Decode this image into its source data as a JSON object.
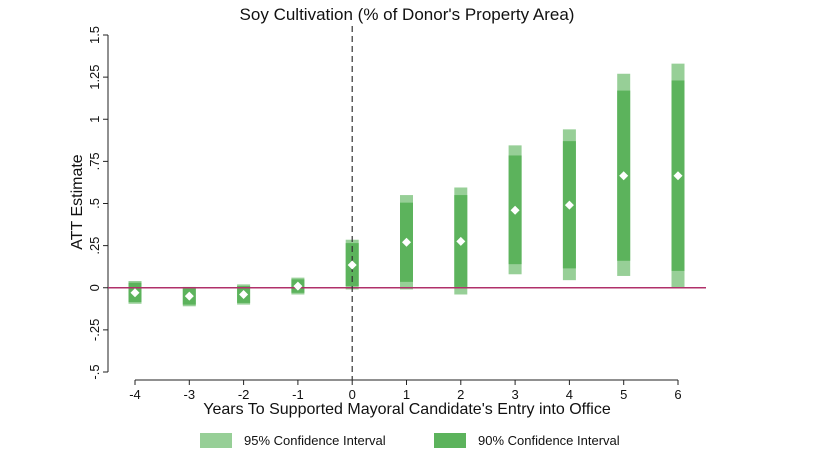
{
  "chart_data": {
    "type": "interval",
    "title": "Soy Cultivation (% of Donor's Property Area)",
    "xlabel": "Years To Supported Mayoral Candidate's Entry into Office",
    "ylabel": "ATT Estimate",
    "xlim": [
      -4,
      6
    ],
    "ylim": [
      -0.5,
      1.5
    ],
    "x_ticks": [
      "-4",
      "-3",
      "-2",
      "-1",
      "0",
      "1",
      "2",
      "3",
      "4",
      "5",
      "6"
    ],
    "y_ticks": [
      {
        "value": -0.5,
        "label": "-.5"
      },
      {
        "value": -0.25,
        "label": "-.25"
      },
      {
        "value": 0,
        "label": "0"
      },
      {
        "value": 0.25,
        "label": ".25"
      },
      {
        "value": 0.5,
        "label": ".5"
      },
      {
        "value": 0.75,
        "label": ".75"
      },
      {
        "value": 1,
        "label": "1"
      },
      {
        "value": 1.25,
        "label": "1.25"
      },
      {
        "value": 1.5,
        "label": "1.5"
      }
    ],
    "points": [
      {
        "x": -4,
        "estimate": -0.03,
        "ci95": [
          -0.095,
          0.04
        ],
        "ci90": [
          -0.085,
          0.03
        ]
      },
      {
        "x": -3,
        "estimate": -0.05,
        "ci95": [
          -0.11,
          0.005
        ],
        "ci90": [
          -0.1,
          -0.005
        ]
      },
      {
        "x": -2,
        "estimate": -0.04,
        "ci95": [
          -0.1,
          0.02
        ],
        "ci90": [
          -0.09,
          0.01
        ]
      },
      {
        "x": -1,
        "estimate": 0.01,
        "ci95": [
          -0.04,
          0.06
        ],
        "ci90": [
          -0.03,
          0.05
        ]
      },
      {
        "x": 0,
        "estimate": 0.135,
        "ci95": [
          -0.01,
          0.285
        ],
        "ci90": [
          0.01,
          0.265
        ]
      },
      {
        "x": 1,
        "estimate": 0.27,
        "ci95": [
          -0.01,
          0.55
        ],
        "ci90": [
          0.035,
          0.505
        ]
      },
      {
        "x": 2,
        "estimate": 0.275,
        "ci95": [
          -0.04,
          0.595
        ],
        "ci90": [
          0.005,
          0.55
        ]
      },
      {
        "x": 3,
        "estimate": 0.46,
        "ci95": [
          0.08,
          0.845
        ],
        "ci90": [
          0.14,
          0.785
        ]
      },
      {
        "x": 4,
        "estimate": 0.49,
        "ci95": [
          0.045,
          0.94
        ],
        "ci90": [
          0.115,
          0.87
        ]
      },
      {
        "x": 5,
        "estimate": 0.665,
        "ci95": [
          0.07,
          1.27
        ],
        "ci90": [
          0.16,
          1.17
        ]
      },
      {
        "x": 6,
        "estimate": 0.665,
        "ci95": [
          0.0,
          1.33
        ],
        "ci90": [
          0.1,
          1.23
        ]
      }
    ],
    "reference_line_y": 0,
    "event_line_x": 0,
    "legend": [
      {
        "label": "95% Confidence Interval",
        "color": "#97cf97"
      },
      {
        "label": "90% Confidence Interval",
        "color": "#5cb35c"
      }
    ],
    "legend_position": "bottom",
    "colors": {
      "ci95": "#97cf97",
      "ci90": "#5cb35c",
      "estimate": "#ffffff",
      "zero_line": "#b0306a",
      "event_line": "#333333"
    },
    "grid": false
  }
}
